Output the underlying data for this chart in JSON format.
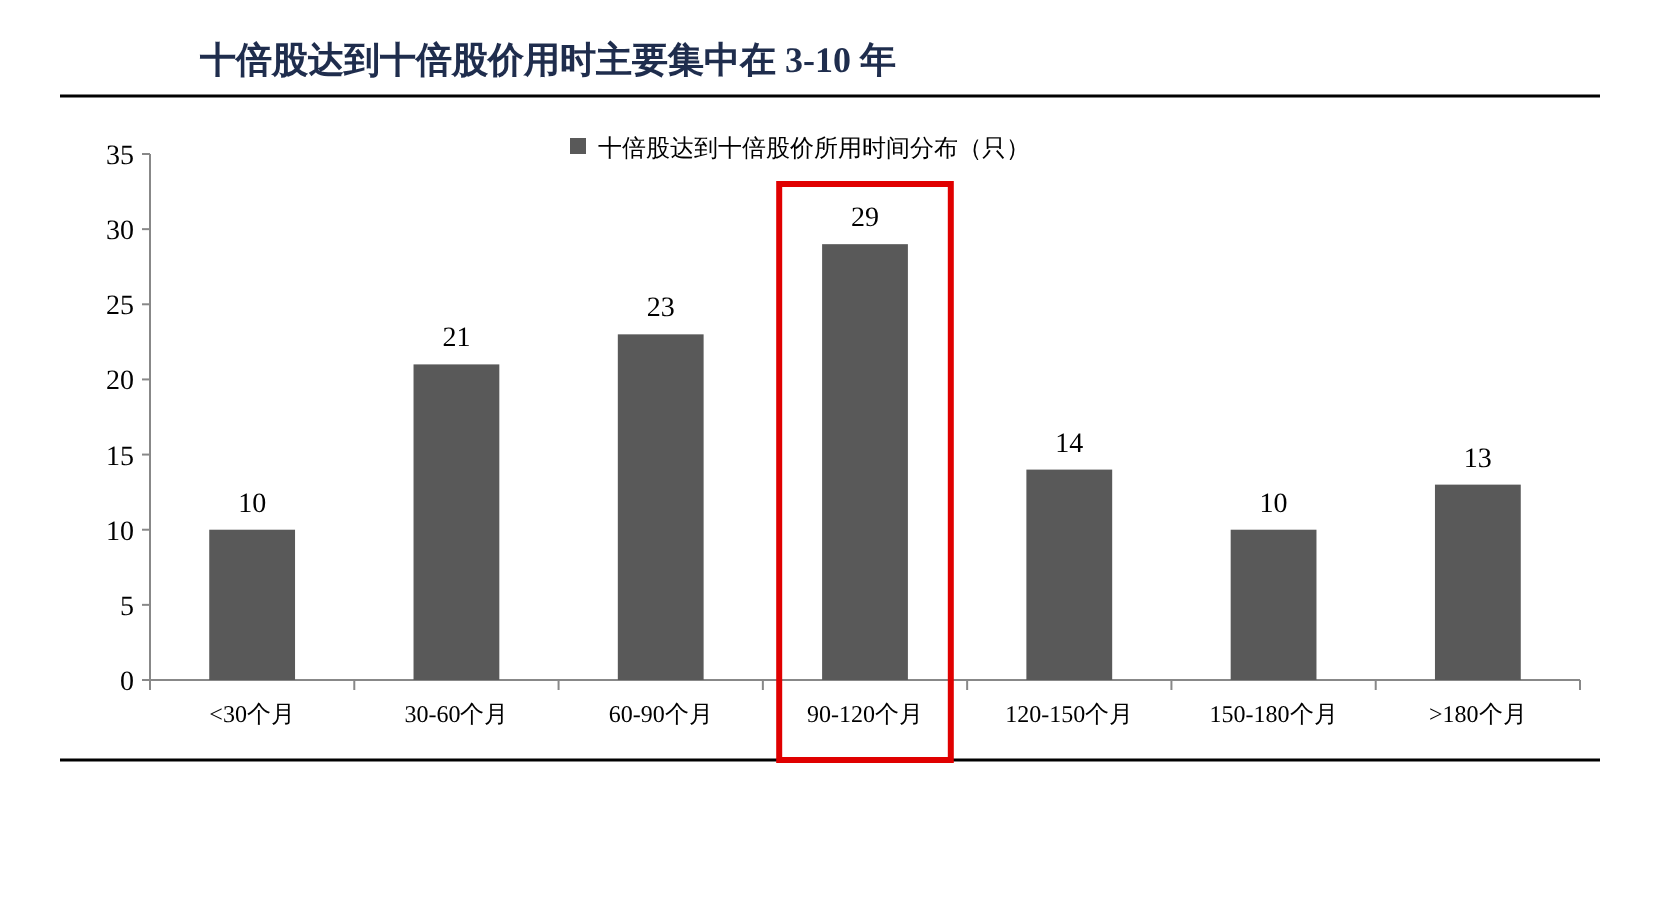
{
  "chart_data": {
    "type": "bar",
    "title": "十倍股达到十倍股价用时主要集中在 3-10 年",
    "categories": [
      "<30个月",
      "30-60个月",
      "60-90个月",
      "90-120个月",
      "120-150个月",
      "150-180个月",
      ">180个月"
    ],
    "series": [
      {
        "name": "十倍股达到十倍股价所用时间分布（只）",
        "color": "#595959",
        "values": [
          10,
          21,
          23,
          29,
          14,
          10,
          13
        ]
      }
    ],
    "ylim": [
      0,
      35
    ],
    "yticks": [
      0,
      5,
      10,
      15,
      20,
      25,
      30,
      35
    ],
    "grid": false,
    "legend": "top",
    "data_labels": true
  }
}
